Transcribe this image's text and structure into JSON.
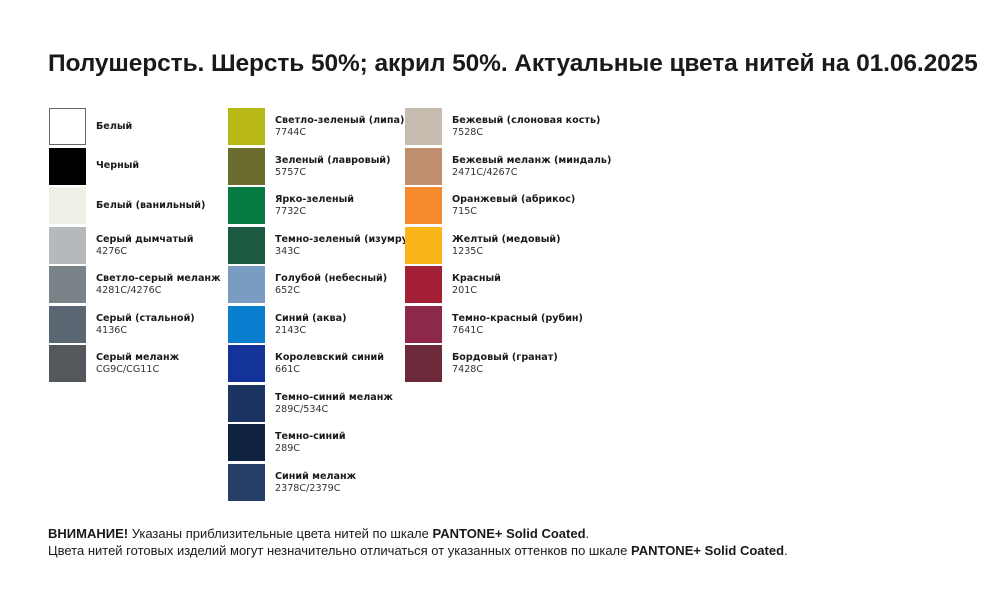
{
  "title": "Полушерсть. Шерсть 50%; акрил 50%. Актуальные цвета нитей на 01.06.2025",
  "columns": [
    [
      {
        "name": "Белый",
        "code": "",
        "color": "#ffffff"
      },
      {
        "name": "Черный",
        "code": "",
        "color": "#000000"
      },
      {
        "name": "Белый (ванильный)",
        "code": "",
        "color": "#f0efe6"
      },
      {
        "name": "Серый дымчатый",
        "code": "4276C",
        "color": "#b5b9bb"
      },
      {
        "name": "Светло-серый меланж",
        "code": "4281C/4276C",
        "color": "#7a8488"
      },
      {
        "name": "Серый (стальной)",
        "code": "4136C",
        "color": "#5b6873"
      },
      {
        "name": "Серый меланж",
        "code": "CG9C/CG11C",
        "color": "#54575b"
      }
    ],
    [
      {
        "name": "Светло-зеленый (липа)",
        "code": "7744C",
        "color": "#b8b817"
      },
      {
        "name": "Зеленый (лавровый)",
        "code": "5757C",
        "color": "#6b6d2f"
      },
      {
        "name": "Ярко-зеленый",
        "code": "7732C",
        "color": "#067a40"
      },
      {
        "name": "Темно-зеленый (изумруд)",
        "code": "343C",
        "color": "#1b5a40"
      },
      {
        "name": "Голубой (небесный)",
        "code": "652C",
        "color": "#7a9bc2"
      },
      {
        "name": "Синий (аква)",
        "code": "2143C",
        "color": "#0a7fd0"
      },
      {
        "name": "Королевский синий",
        "code": "661C",
        "color": "#14339a"
      },
      {
        "name": "Темно-синий меланж",
        "code": "289C/534C",
        "color": "#1b3560"
      },
      {
        "name": "Темно-синий",
        "code": "289C",
        "color": "#0f2240"
      },
      {
        "name": "Синий меланж",
        "code": "2378C/2379C",
        "color": "#253f68"
      }
    ],
    [
      {
        "name": "Бежевый (слоновая кость)",
        "code": "7528C",
        "color": "#c7bcb0"
      },
      {
        "name": "Бежевый меланж (миндаль)",
        "code": "2471C/4267C",
        "color": "#bf8f6f"
      },
      {
        "name": "Оранжевый (абрикос)",
        "code": "715C",
        "color": "#f58a2c"
      },
      {
        "name": "Желтый (медовый)",
        "code": "1235C",
        "color": "#fbb41a"
      },
      {
        "name": "Красный",
        "code": "201C",
        "color": "#a21f35"
      },
      {
        "name": "Темно-красный (рубин)",
        "code": "7641C",
        "color": "#8e2848"
      },
      {
        "name": "Бордовый (гранат)",
        "code": "7428C",
        "color": "#6c2a3a"
      }
    ]
  ],
  "notes": {
    "line1_bold": "ВНИМАНИЕ!",
    "line1_text": " Указаны приблизительные цвета нитей по шкале ",
    "line1_brand": "PANTONE+ Solid Coated",
    "line1_end": ".",
    "line2_text": "Цвета нитей готовых изделий могут незначительно отличаться от указанных оттенков по шкале ",
    "line2_brand": "PANTONE+ Solid Coated",
    "line2_end": "."
  }
}
